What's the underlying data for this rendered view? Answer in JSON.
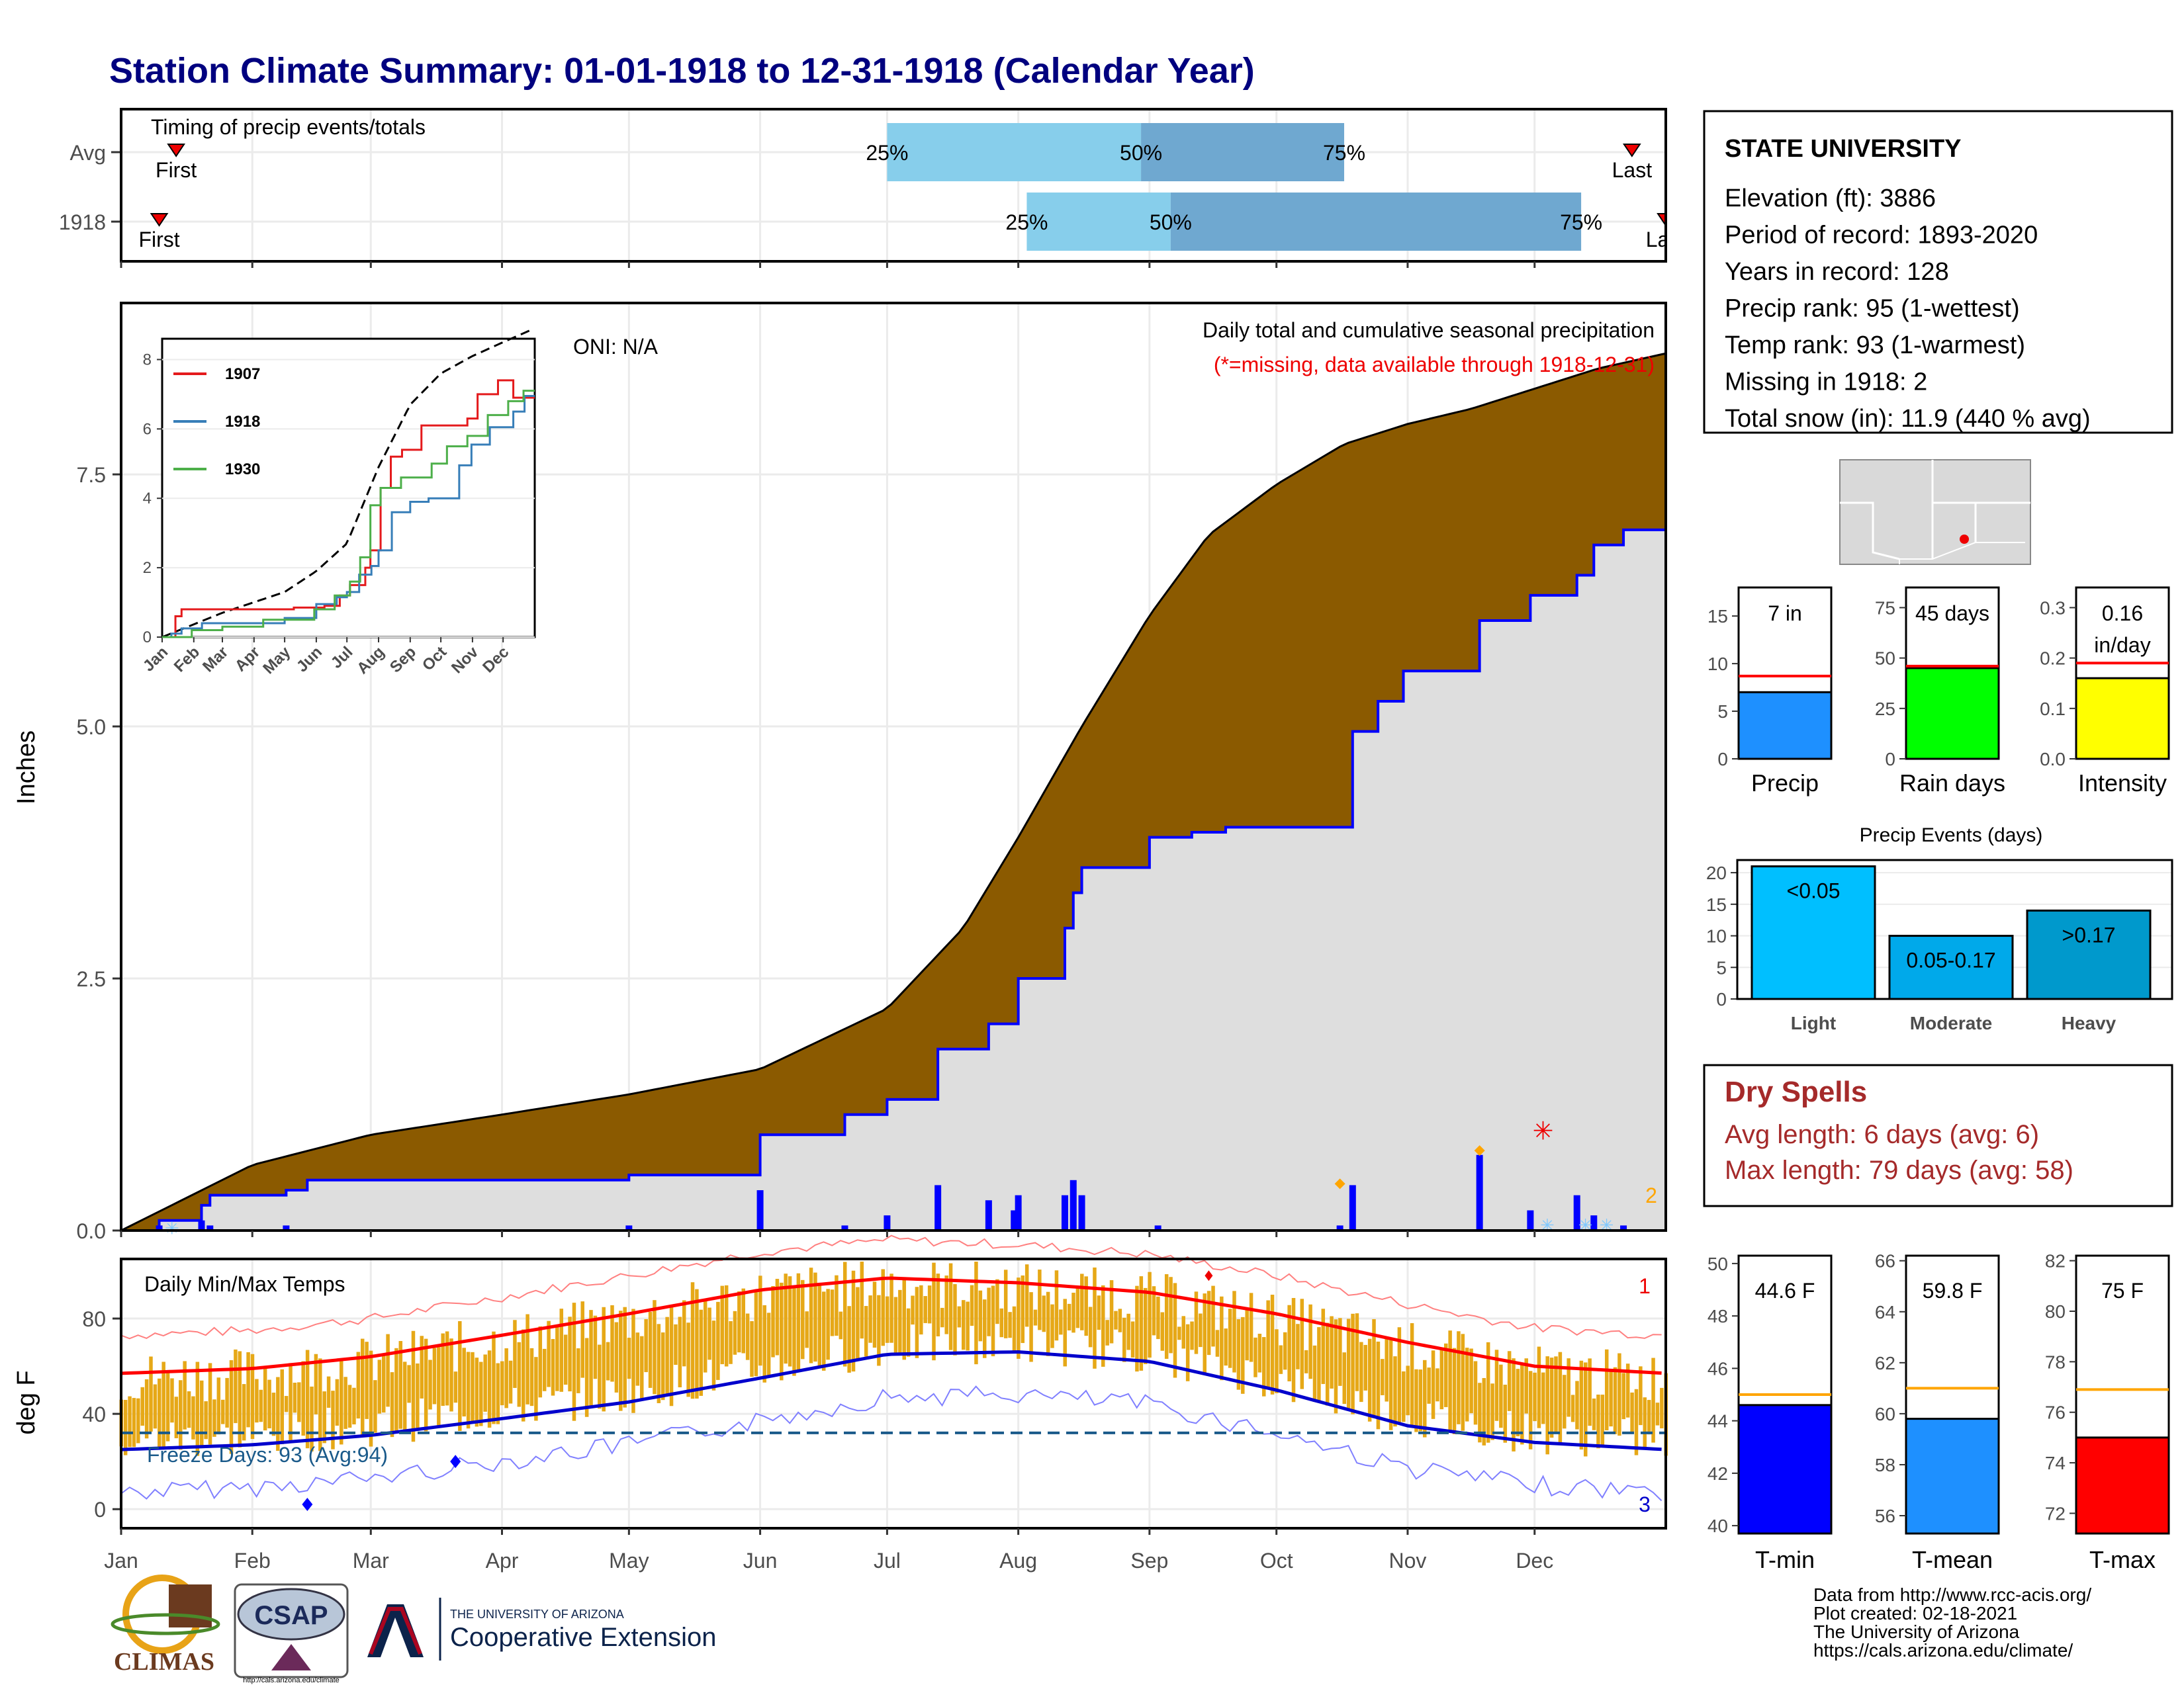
{
  "title": "Station Climate Summary: 01-01-1918 to 12-31-1918 (Calendar Year)",
  "timing": {
    "panel_title": "Timing of precip events/totals",
    "rows": [
      {
        "label": "Avg",
        "first_label": "First",
        "last_label": "Last",
        "first_day": 14,
        "last_day": 358,
        "q25_day": 182,
        "q50_day": 242,
        "q75_day": 290
      },
      {
        "label": "1918",
        "first_label": "First",
        "last_label": "Last",
        "first_day": 10,
        "last_day": 366,
        "q25_day": 215,
        "q50_day": 249,
        "q75_day": 346
      }
    ],
    "pct_labels": [
      "25%",
      "50%",
      "75%"
    ]
  },
  "precip_panel": {
    "ylabel": "Inches",
    "yticks": [
      "0.0",
      "2.5",
      "5.0",
      "7.5"
    ],
    "oni": "ONI: N/A",
    "caption": "Daily total and cumulative seasonal precipitation",
    "missing_note": "(*=missing, data available through 1918-12-31)",
    "snow_count": "2"
  },
  "inset": {
    "yticks": [
      "0",
      "2",
      "4",
      "6",
      "8"
    ],
    "xticks": [
      "Jan",
      "Feb",
      "Mar",
      "Apr",
      "May",
      "Jun",
      "Jul",
      "Aug",
      "Sep",
      "Oct",
      "Nov",
      "Dec"
    ],
    "legend": [
      {
        "name": "1907",
        "color": "#e41a1c"
      },
      {
        "name": "1918",
        "color": "#377eb8"
      },
      {
        "name": "1930",
        "color": "#4daf4a"
      }
    ]
  },
  "temp_panel": {
    "ylabel": "deg F",
    "title": "Daily Min/Max Temps",
    "yticks": [
      "0",
      "40",
      "80"
    ],
    "freeze_label": "Freeze Days: 93 (Avg:94)",
    "record_high_count": "1",
    "record_low_count": "3"
  },
  "months": [
    "Jan",
    "Feb",
    "Mar",
    "Apr",
    "May",
    "Jun",
    "Jul",
    "Aug",
    "Sep",
    "Oct",
    "Nov",
    "Dec"
  ],
  "station": {
    "name": "STATE UNIVERSITY",
    "lines": [
      "Elevation (ft): 3886",
      "Period of record: 1893-2020",
      "Years in record: 128",
      "Precip rank: 95 (1-wettest)",
      "Temp rank: 93 (1-warmest)",
      "Missing in 1918: 2",
      "Total snow (in): 11.9 (440 % avg)"
    ]
  },
  "small_bars": [
    {
      "label": "Precip",
      "value_label": "7 in",
      "value": 7,
      "avg": 8.7,
      "ymax": 18,
      "yticks": [
        "0",
        "5",
        "10",
        "15"
      ],
      "tickvals": [
        0,
        5,
        10,
        15
      ],
      "color": "#1e90ff"
    },
    {
      "label": "Rain days",
      "value_label": "45 days",
      "value": 45,
      "avg": 46,
      "ymax": 85,
      "yticks": [
        "0",
        "25",
        "50",
        "75"
      ],
      "tickvals": [
        0,
        25,
        50,
        75
      ],
      "color": "#00ff00"
    },
    {
      "label": "Intensity",
      "value_label": "0.16 in/day",
      "value": 0.16,
      "avg": 0.19,
      "ymax": 0.34,
      "yticks": [
        "0.0",
        "0.1",
        "0.2",
        "0.3"
      ],
      "tickvals": [
        0,
        0.1,
        0.2,
        0.3
      ],
      "color": "#ffff00"
    }
  ],
  "events": {
    "title": "Precip Events (days)",
    "yticks": [
      "0",
      "5",
      "10",
      "15",
      "20"
    ],
    "bars": [
      {
        "label": "Light",
        "value_label": "<0.05",
        "value": 21,
        "color": "#00bfff"
      },
      {
        "label": "Moderate",
        "value_label": "0.05-0.17",
        "value": 10,
        "color": "#00a9ea"
      },
      {
        "label": "Heavy",
        "value_label": ">0.17",
        "value": 14,
        "color": "#0099cc"
      }
    ]
  },
  "dry_spells": {
    "title": "Dry Spells",
    "avg_line": "Avg length: 6 days (avg: 6)",
    "max_line": "Max length: 79 days (avg: 58)"
  },
  "temp_bars": [
    {
      "label": "T-min",
      "value_label": "44.6 F",
      "value": 44.6,
      "avg": 45.0,
      "ymin": 39.7,
      "ymax": 50.3,
      "yticks": [
        "40",
        "42",
        "44",
        "46",
        "48",
        "50"
      ],
      "tickvals": [
        40,
        42,
        44,
        46,
        48,
        50
      ],
      "color": "#0000ff"
    },
    {
      "label": "T-mean",
      "value_label": "59.8 F",
      "value": 59.8,
      "avg": 61.0,
      "ymin": 55.3,
      "ymax": 66.2,
      "yticks": [
        "56",
        "58",
        "60",
        "62",
        "64",
        "66"
      ],
      "tickvals": [
        56,
        58,
        60,
        62,
        64,
        66
      ],
      "color": "#1e90ff"
    },
    {
      "label": "T-max",
      "value_label": "75 F",
      "value": 75.0,
      "avg": 76.9,
      "ymin": 71.2,
      "ymax": 82.2,
      "yticks": [
        "72",
        "74",
        "76",
        "78",
        "80",
        "82"
      ],
      "tickvals": [
        72,
        74,
        76,
        78,
        80,
        82
      ],
      "color": "#ff0000"
    }
  ],
  "credits": [
    "Data from http://www.rcc-acis.org/",
    "Plot created: 02-18-2021",
    "The University of Arizona",
    "https://cals.arizona.edu/climate/"
  ],
  "logos": {
    "climas": "CLIMAS",
    "csap": "CSAP",
    "csap_url": "http://cals.arizona.edu/climate",
    "ua_line1": "THE UNIVERSITY OF ARIZONA",
    "ua_line2": "Cooperative Extension"
  },
  "chart_data": [
    {
      "type": "area",
      "title": "Daily total and cumulative seasonal precipitation",
      "ylabel": "Inches",
      "ylim": [
        0,
        9.2
      ],
      "series": [
        {
          "name": "Average cumulative precipitation",
          "color": "#8b5a00",
          "x": [
            1,
            32,
            60,
            91,
            121,
            152,
            182,
            200,
            213,
            228,
            244,
            258,
            274,
            290,
            305,
            320,
            335,
            350,
            366
          ],
          "values": [
            0,
            0.65,
            0.95,
            1.15,
            1.35,
            1.6,
            2.2,
            3.0,
            3.9,
            5.0,
            6.1,
            6.9,
            7.4,
            7.8,
            8.0,
            8.15,
            8.35,
            8.55,
            8.7
          ]
        },
        {
          "name": "1918 cumulative precipitation",
          "color": "#0000ff",
          "x": [
            1,
            10,
            20,
            22,
            40,
            45,
            121,
            152,
            172,
            182,
            194,
            206,
            213,
            224,
            226,
            228,
            244,
            254,
            262,
            292,
            298,
            304,
            322,
            334,
            345,
            349,
            356,
            366
          ],
          "values": [
            0,
            0.1,
            0.25,
            0.35,
            0.4,
            0.5,
            0.55,
            0.95,
            1.15,
            1.3,
            1.8,
            2.05,
            2.5,
            3.0,
            3.35,
            3.6,
            3.9,
            3.95,
            4.0,
            4.95,
            5.25,
            5.55,
            6.05,
            6.3,
            6.5,
            6.8,
            6.95,
            6.95
          ]
        }
      ],
      "daily_bars": {
        "x": [
          10,
          20,
          22,
          40,
          121,
          152,
          172,
          182,
          194,
          206,
          212,
          213,
          224,
          226,
          228,
          246,
          289,
          292,
          322,
          334,
          345,
          349,
          356
        ],
        "values": [
          0.05,
          0.1,
          0.05,
          0.05,
          0.05,
          0.4,
          0.05,
          0.15,
          0.45,
          0.3,
          0.2,
          0.35,
          0.35,
          0.5,
          0.35,
          0.05,
          0.05,
          0.45,
          0.75,
          0.2,
          0.35,
          0.15,
          0.05
        ]
      }
    },
    {
      "type": "line",
      "title": "Daily Min/Max Temps",
      "ylabel": "deg F",
      "ylim": [
        -8,
        105
      ],
      "series": [
        {
          "name": "Avg max",
          "color": "#ff0000",
          "x": [
            1,
            32,
            60,
            91,
            121,
            152,
            182,
            213,
            244,
            274,
            305,
            335,
            366
          ],
          "values": [
            57,
            59,
            64,
            73,
            82,
            92,
            97,
            95,
            91,
            82,
            70,
            60,
            57
          ]
        },
        {
          "name": "Avg min",
          "color": "#0000ff",
          "x": [
            1,
            32,
            60,
            91,
            121,
            152,
            182,
            213,
            244,
            274,
            305,
            335,
            366
          ],
          "values": [
            25,
            27,
            31,
            38,
            45,
            55,
            65,
            66,
            62,
            50,
            35,
            28,
            25
          ]
        }
      ],
      "freeze_threshold": 32
    }
  ]
}
